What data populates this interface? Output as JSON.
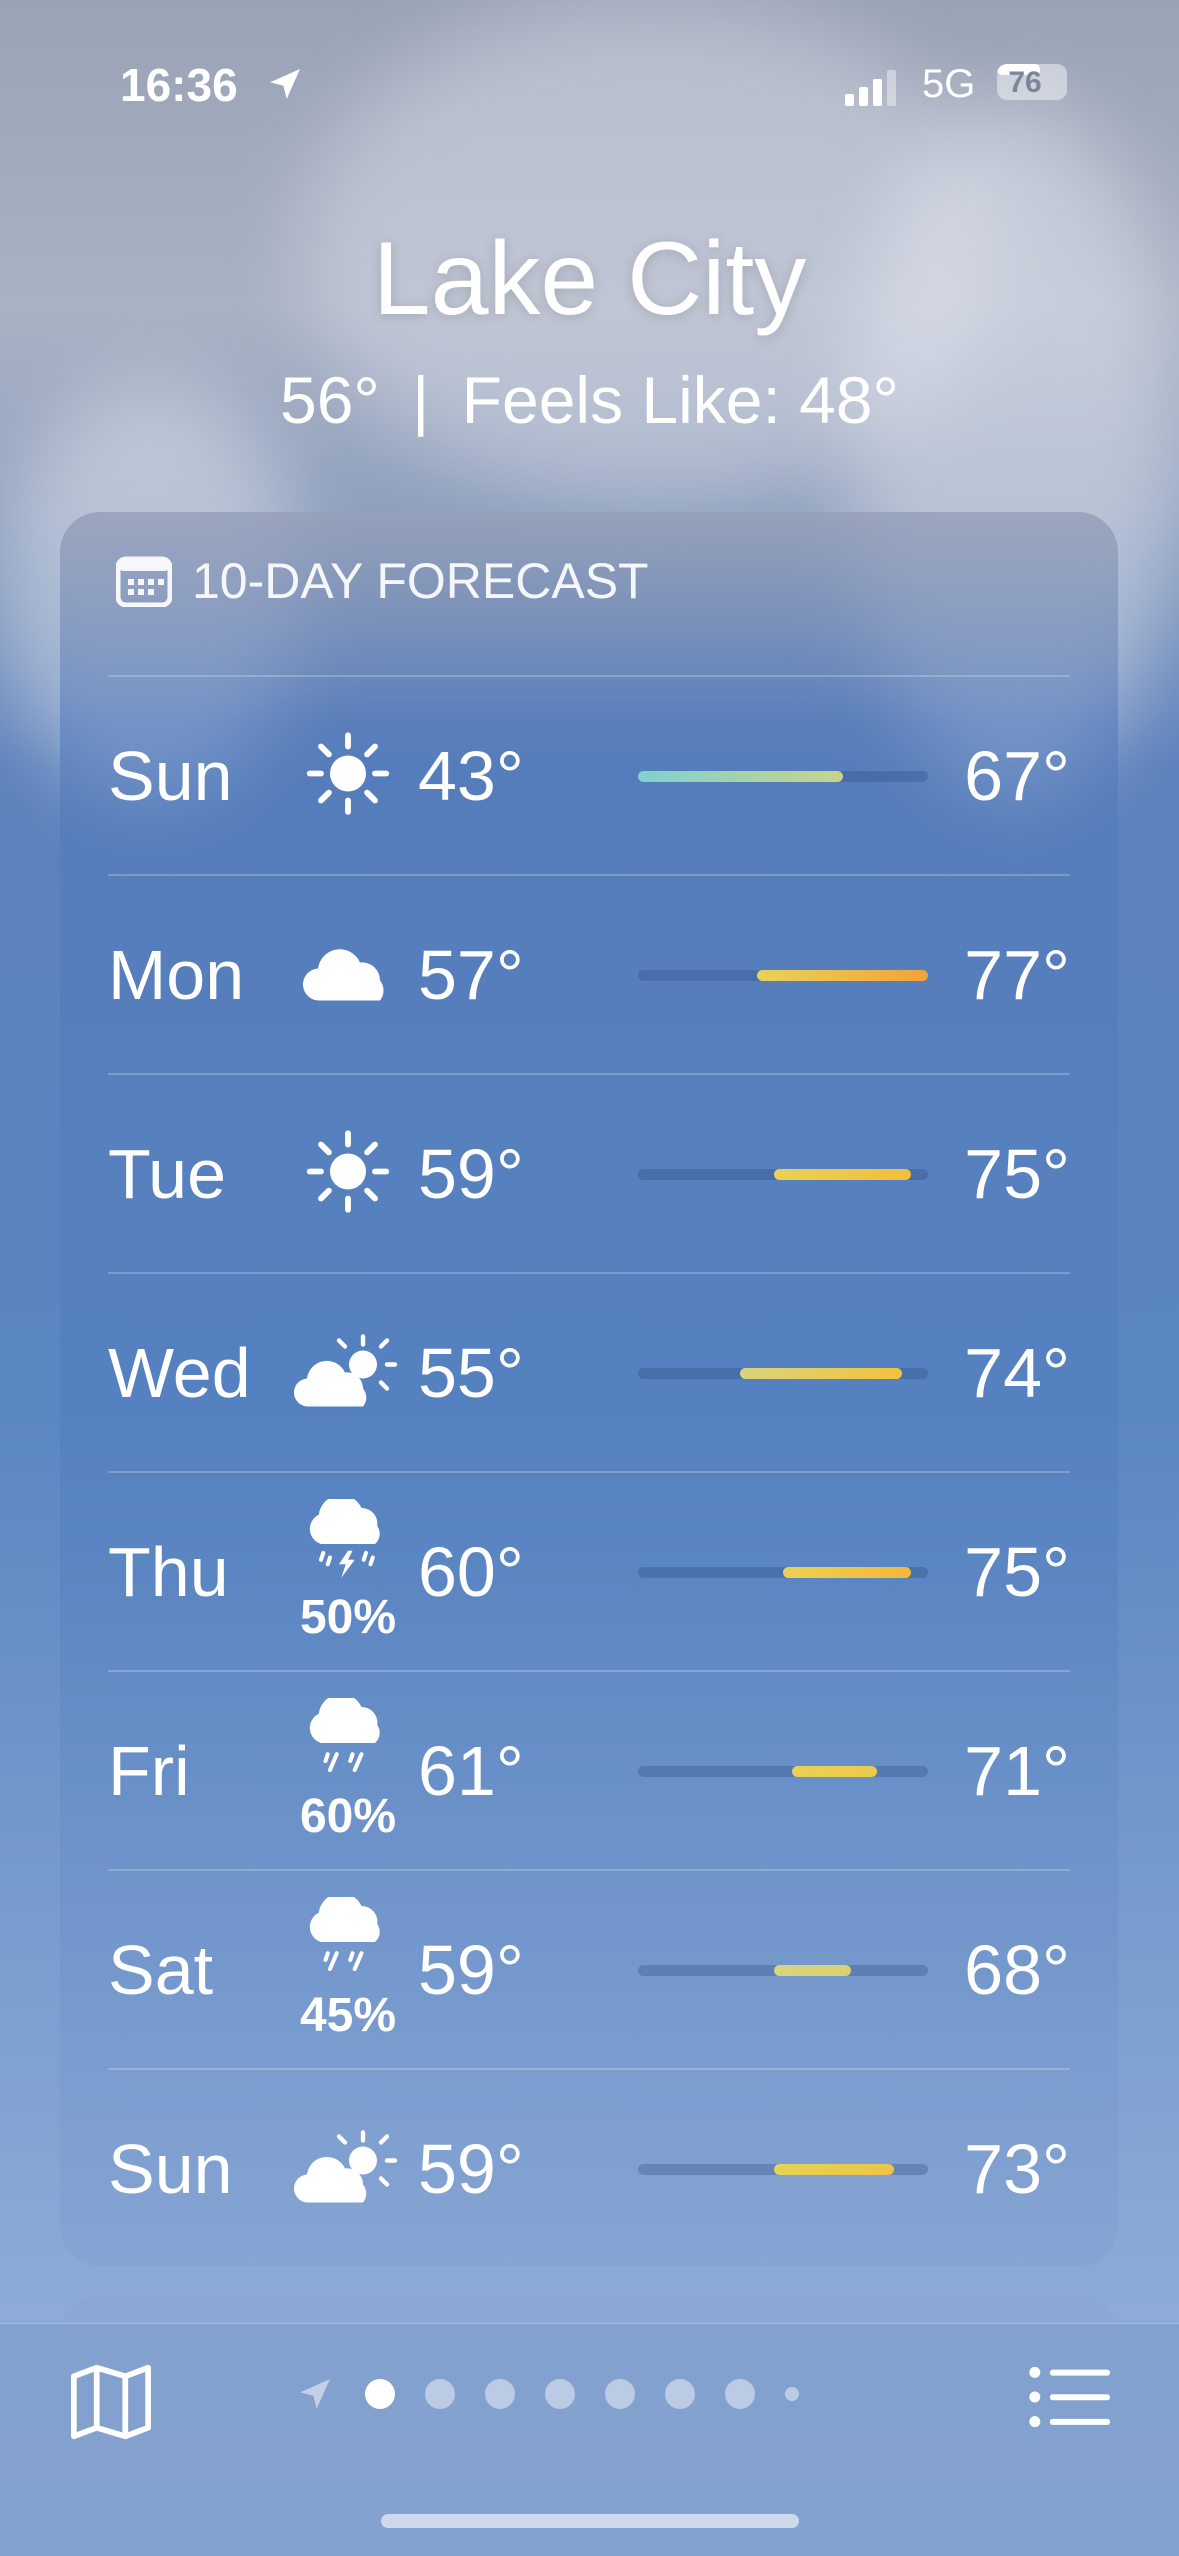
{
  "status_bar": {
    "time": "16:36",
    "network": "5G",
    "battery": "76",
    "battery_level": 76,
    "signal_bars": 3
  },
  "header": {
    "city": "Lake City",
    "current": "56°",
    "separator": "|",
    "feels_like": "Feels Like: 48°"
  },
  "forecast": {
    "title": "10-DAY FORECAST",
    "range": {
      "min": 43,
      "max": 77
    },
    "days": [
      {
        "day": "Sun",
        "icon": "sun-icon",
        "precip": "",
        "low": "43°",
        "high": "67°",
        "lo": 43,
        "hi": 67,
        "colors": [
          "#7fd1cf",
          "#c7d48a"
        ]
      },
      {
        "day": "Mon",
        "icon": "cloud-icon",
        "precip": "",
        "low": "57°",
        "high": "77°",
        "lo": 57,
        "hi": 77,
        "colors": [
          "#e8d25a",
          "#f2a23a"
        ]
      },
      {
        "day": "Tue",
        "icon": "sun-icon",
        "precip": "",
        "low": "59°",
        "high": "75°",
        "lo": 59,
        "hi": 75,
        "colors": [
          "#e9d152",
          "#f3bf3a"
        ]
      },
      {
        "day": "Wed",
        "icon": "partly-cloudy-icon",
        "precip": "",
        "low": "55°",
        "high": "74°",
        "lo": 55,
        "hi": 74,
        "colors": [
          "#d8d47a",
          "#f2c33c"
        ]
      },
      {
        "day": "Thu",
        "icon": "thunderstorm-icon",
        "precip": "50%",
        "low": "60°",
        "high": "75°",
        "lo": 60,
        "hi": 75,
        "colors": [
          "#ecd152",
          "#f2b83a"
        ]
      },
      {
        "day": "Fri",
        "icon": "rain-icon",
        "precip": "60%",
        "low": "61°",
        "high": "71°",
        "lo": 61,
        "hi": 71,
        "colors": [
          "#ead055",
          "#ecc94e"
        ]
      },
      {
        "day": "Sat",
        "icon": "rain-icon",
        "precip": "45%",
        "low": "59°",
        "high": "68°",
        "lo": 59,
        "hi": 68,
        "colors": [
          "#d6d47e",
          "#dcd170"
        ]
      },
      {
        "day": "Sun",
        "icon": "partly-cloudy-icon",
        "precip": "",
        "low": "59°",
        "high": "73°",
        "lo": 59,
        "hi": 73,
        "colors": [
          "#e5d358",
          "#edc445"
        ]
      }
    ]
  },
  "bottom_bar": {
    "pages": 9,
    "active_page": 1
  }
}
